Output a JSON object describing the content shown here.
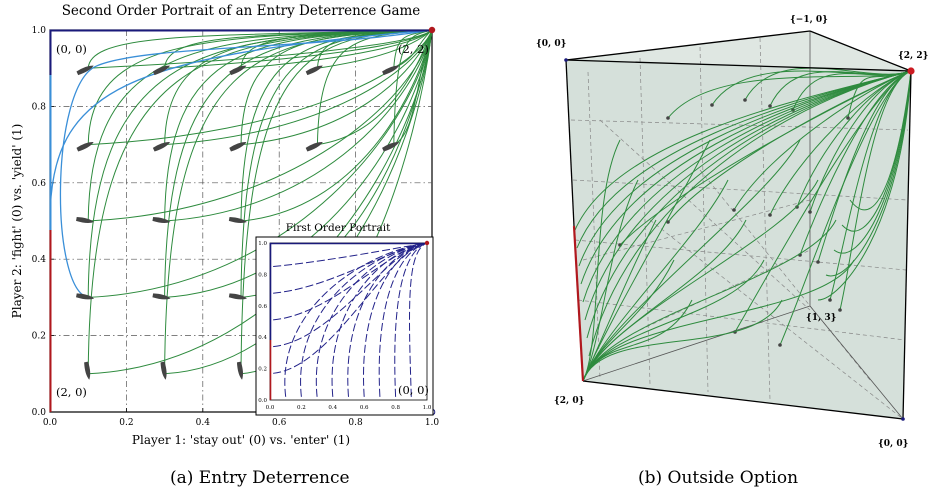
{
  "panel_a": {
    "title": "Second Order Portrait of an Entry Deterrence Game",
    "xlabel": "Player 1: 'stay out' (0) vs. 'enter' (1)",
    "ylabel": "Player 2: 'fight' (0) vs. 'yield' (1)",
    "xticks": [
      "0.0",
      "0.2",
      "0.4",
      "0.6",
      "0.8",
      "1.0"
    ],
    "yticks": [
      "0.0",
      "0.2",
      "0.4",
      "0.6",
      "0.8",
      "1.0"
    ],
    "corner_labels": {
      "top_left": "(0, 0)",
      "top_right": "(2, 2)",
      "bottom_left": "(2, 0)"
    },
    "inset": {
      "title": "First Order Portrait",
      "xticks": [
        "0.0",
        "0.2",
        "0.4",
        "0.6",
        "0.8",
        "1.0"
      ],
      "yticks": [
        "0.0",
        "0.2",
        "0.4",
        "0.6",
        "0.8",
        "1.0"
      ],
      "corner_label": "(0, 0)"
    },
    "caption": "(a)  Entry Deterrence"
  },
  "panel_b": {
    "vertex_labels": {
      "top_left": "{0, 0}",
      "top_back": "{−1, 0}",
      "right": "{2, 2}",
      "bottom_left": "{2, 0}",
      "back_mid": "{1, 3}",
      "bottom_right": "{0, 0}"
    },
    "caption": "(b)  Outside Option"
  },
  "colors": {
    "green": "#2e8b3e",
    "blue": "#3a8fd8",
    "red": "#b0181e",
    "navy": "#1a1a7a",
    "inset_blue": "#23238a",
    "grey": "#444444",
    "prism_fill": "#d3ded8"
  },
  "chart_data": [
    {
      "type": "line",
      "title": "Second Order Portrait of an Entry Deterrence Game",
      "xlabel": "Player 1: 'stay out' (0) vs. 'enter' (1)",
      "ylabel": "Player 2: 'fight' (0) vs. 'yield' (1)",
      "xlim": [
        0,
        1
      ],
      "ylim": [
        0,
        1
      ],
      "grid": true,
      "start_points": [
        [
          0.1,
          0.9
        ],
        [
          0.3,
          0.9
        ],
        [
          0.5,
          0.9
        ],
        [
          0.7,
          0.9
        ],
        [
          0.9,
          0.9
        ],
        [
          0.1,
          0.7
        ],
        [
          0.3,
          0.7
        ],
        [
          0.5,
          0.7
        ],
        [
          0.7,
          0.7
        ],
        [
          0.9,
          0.7
        ],
        [
          0.1,
          0.5
        ],
        [
          0.3,
          0.5
        ],
        [
          0.5,
          0.5
        ],
        [
          0.1,
          0.3
        ],
        [
          0.3,
          0.3
        ],
        [
          0.5,
          0.3
        ],
        [
          0.1,
          0.1
        ],
        [
          0.3,
          0.1
        ],
        [
          0.5,
          0.1
        ]
      ]
    },
    {
      "type": "line",
      "title": "First Order Portrait",
      "xlim": [
        0,
        1
      ],
      "ylim": [
        0,
        1
      ]
    }
  ]
}
